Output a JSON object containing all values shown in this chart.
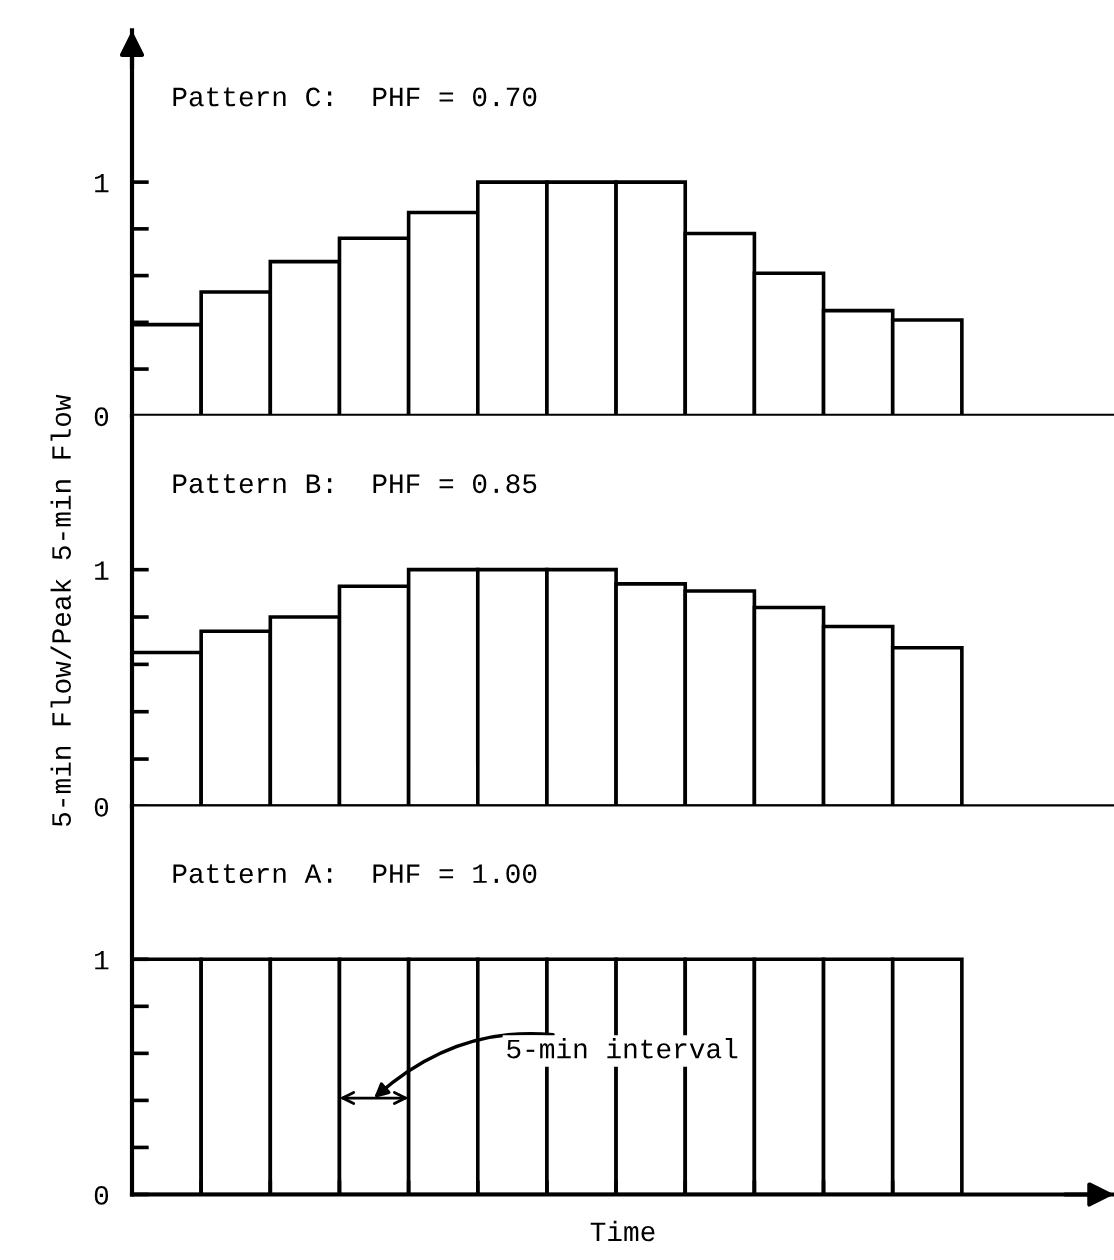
{
  "chart_data": [
    {
      "type": "bar",
      "title": "Pattern C:  PHF = 0.70",
      "categories": [
        null,
        null,
        null,
        null,
        null,
        null,
        null,
        null,
        null,
        null,
        null,
        null
      ],
      "values": [
        0.39,
        0.53,
        0.66,
        0.76,
        0.87,
        1,
        1,
        1,
        0.78,
        0.61,
        0.45,
        0.41
      ],
      "color": "#ffffff",
      "ylim": [
        0,
        1.65
      ],
      "yticks": [
        0,
        {
          "value": 0.2,
          "label": null
        },
        {
          "value": 0.4,
          "label": null
        },
        {
          "value": 0.6,
          "label": null
        },
        {
          "value": 0.8,
          "label": null
        },
        1
      ],
      "tick_labels": "y",
      "grid": false,
      "legend": false
    },
    {
      "type": "bar",
      "title": "Pattern B:  PHF = 0.85",
      "ylabel": "5-min Flow/Peak 5-min Flow",
      "categories": [
        null,
        null,
        null,
        null,
        null,
        null,
        null,
        null,
        null,
        null,
        null,
        null
      ],
      "values": [
        0.65,
        0.74,
        0.8,
        0.93,
        1,
        1,
        1,
        0.94,
        0.91,
        0.84,
        0.76,
        0.67
      ],
      "color": "#ffffff",
      "ylim": [
        0,
        1.65
      ],
      "yticks": [
        0,
        {
          "value": 0.2,
          "label": null
        },
        {
          "value": 0.4,
          "label": null
        },
        {
          "value": 0.6,
          "label": null
        },
        {
          "value": 0.8,
          "label": null
        },
        1
      ],
      "tick_labels": "y",
      "grid": false,
      "legend": false
    },
    {
      "type": "bar",
      "title": "Pattern A:  PHF = 1.00",
      "xlabel": "Time",
      "categories": [
        null,
        null,
        null,
        null,
        null,
        null,
        null,
        null,
        null,
        null,
        null,
        null
      ],
      "values": [
        1,
        1,
        1,
        1,
        1,
        1,
        1,
        1,
        1,
        1,
        1,
        1
      ],
      "color": "#ffffff",
      "ylim": [
        0,
        1.65
      ],
      "yticks": [
        0,
        {
          "value": 0.2,
          "label": null
        },
        {
          "value": 0.4,
          "label": null
        },
        {
          "value": 0.6,
          "label": null
        },
        {
          "value": 0.8,
          "label": null
        },
        1
      ],
      "tick_labels": "y",
      "grid": false,
      "legend": false,
      "annotations": [
        {
          "text": "5-min interval",
          "y": 0.41
        }
      ]
    }
  ]
}
